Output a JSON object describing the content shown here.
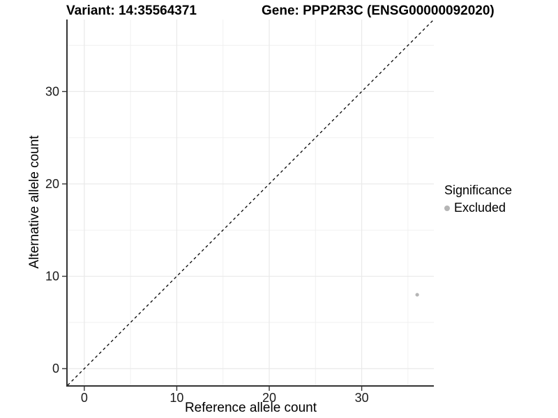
{
  "chart_data": {
    "type": "scatter",
    "title_left": "Variant: 14:35564371",
    "title_right": "Gene: PPP2R3C (ENSG00000092020)",
    "xlabel": "Reference allele count",
    "ylabel": "Alternative allele count",
    "xlim": [
      -1.8,
      37.8
    ],
    "ylim": [
      -1.8,
      37.8
    ],
    "x_ticks": [
      0,
      10,
      20,
      30
    ],
    "y_ticks": [
      0,
      10,
      20,
      30
    ],
    "x_minor_ticks": [
      5,
      15,
      25,
      35
    ],
    "y_minor_ticks": [
      5,
      15,
      25,
      35
    ],
    "grid": true,
    "legend": {
      "title": "Significance",
      "position": "right",
      "entries": [
        {
          "label": "Excluded",
          "color": "#b5b5b5"
        }
      ]
    },
    "series": [
      {
        "name": "Excluded",
        "color": "#b5b5b5",
        "points": [
          {
            "x": 36,
            "y": 8
          }
        ]
      }
    ],
    "reference_line": {
      "slope": 1,
      "intercept": 0,
      "style": "dashed",
      "color": "#000000"
    },
    "colors": {
      "background": "#ffffff",
      "grid_major": "#e9e9e9",
      "grid_minor": "#efefef",
      "axis_line": "#333333",
      "tick_mark": "#333333",
      "tick_text": "#1a1a1a"
    }
  }
}
